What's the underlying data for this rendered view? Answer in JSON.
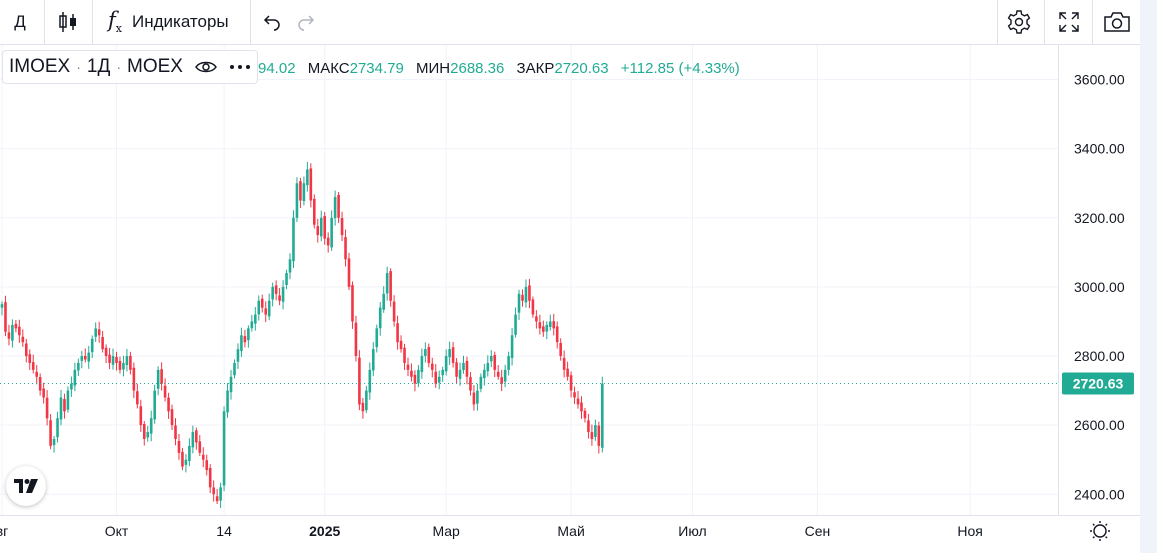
{
  "toolbar": {
    "interval": "Д",
    "indicators_label": "Индикаторы"
  },
  "legend": {
    "symbol": "IMOEX",
    "sep1": "·",
    "interval": "1Д",
    "sep2": "·",
    "exchange": "MOEX",
    "open_label": "",
    "open_value": "94.02",
    "high_label": "МАКС",
    "high_value": "2734.79",
    "low_label": "МИН",
    "low_value": "2688.36",
    "close_label": "ЗАКР",
    "close_value": "2720.63",
    "change": "+112.85 (+4.33%)"
  },
  "colors": {
    "up": "#22ab94",
    "down": "#f23645",
    "last_price_bg": "#22ab94",
    "grid": "#f0f3fa"
  },
  "chart_data": {
    "type": "candlestick",
    "symbol": "IMOEX",
    "interval": "1Д",
    "ylim": [
      2340,
      3700
    ],
    "y_ticks": [
      2400,
      2600,
      2800,
      3000,
      3200,
      3400,
      3600
    ],
    "y_tick_labels": [
      "2400.00",
      "2600.00",
      "2800.00",
      "3000.00",
      "3200.00",
      "3400.00",
      "3600.00"
    ],
    "x_ticks": [
      {
        "label": "вг",
        "index": 0
      },
      {
        "label": "Окт",
        "index": 33
      },
      {
        "label": "14",
        "index": 64
      },
      {
        "label": "2025",
        "index": 93,
        "bold": true
      },
      {
        "label": "Мар",
        "index": 128
      },
      {
        "label": "Май",
        "index": 164
      },
      {
        "label": "Июл",
        "index": 199
      },
      {
        "label": "Сен",
        "index": 235
      },
      {
        "label": "Ноя",
        "index": 279
      }
    ],
    "last_price": 2720.63,
    "last_price_label": "2720.63",
    "closes": [
      2950,
      2870,
      2850,
      2890,
      2880,
      2860,
      2840,
      2800,
      2780,
      2760,
      2740,
      2700,
      2680,
      2620,
      2540,
      2560,
      2620,
      2680,
      2640,
      2700,
      2720,
      2760,
      2780,
      2800,
      2790,
      2810,
      2850,
      2880,
      2860,
      2820,
      2800,
      2780,
      2800,
      2780,
      2760,
      2780,
      2800,
      2760,
      2700,
      2660,
      2600,
      2560,
      2580,
      2620,
      2700,
      2760,
      2720,
      2680,
      2640,
      2600,
      2560,
      2520,
      2480,
      2500,
      2540,
      2580,
      2550,
      2520,
      2500,
      2470,
      2420,
      2400,
      2380,
      2420,
      2640,
      2700,
      2740,
      2780,
      2820,
      2860,
      2840,
      2880,
      2900,
      2920,
      2960,
      2940,
      2920,
      2960,
      3000,
      2980,
      2960,
      3000,
      3040,
      3080,
      3200,
      3300,
      3250,
      3300,
      3340,
      3250,
      3180,
      3150,
      3200,
      3140,
      3120,
      3200,
      3260,
      3200,
      3150,
      3080,
      3000,
      2900,
      2800,
      2660,
      2640,
      2700,
      2760,
      2820,
      2880,
      2940,
      2980,
      3040,
      2960,
      2900,
      2840,
      2820,
      2780,
      2760,
      2740,
      2720,
      2760,
      2800,
      2820,
      2780,
      2760,
      2720,
      2740,
      2760,
      2800,
      2820,
      2780,
      2740,
      2760,
      2780,
      2740,
      2700,
      2660,
      2700,
      2740,
      2760,
      2780,
      2800,
      2760,
      2740,
      2720,
      2760,
      2800,
      2860,
      2920,
      2980,
      2960,
      3000,
      2960,
      2920,
      2900,
      2880,
      2870,
      2890,
      2900,
      2880,
      2840,
      2800,
      2760,
      2740,
      2700,
      2680,
      2660,
      2640,
      2620,
      2580,
      2560,
      2600,
      2540,
      2720
    ]
  }
}
